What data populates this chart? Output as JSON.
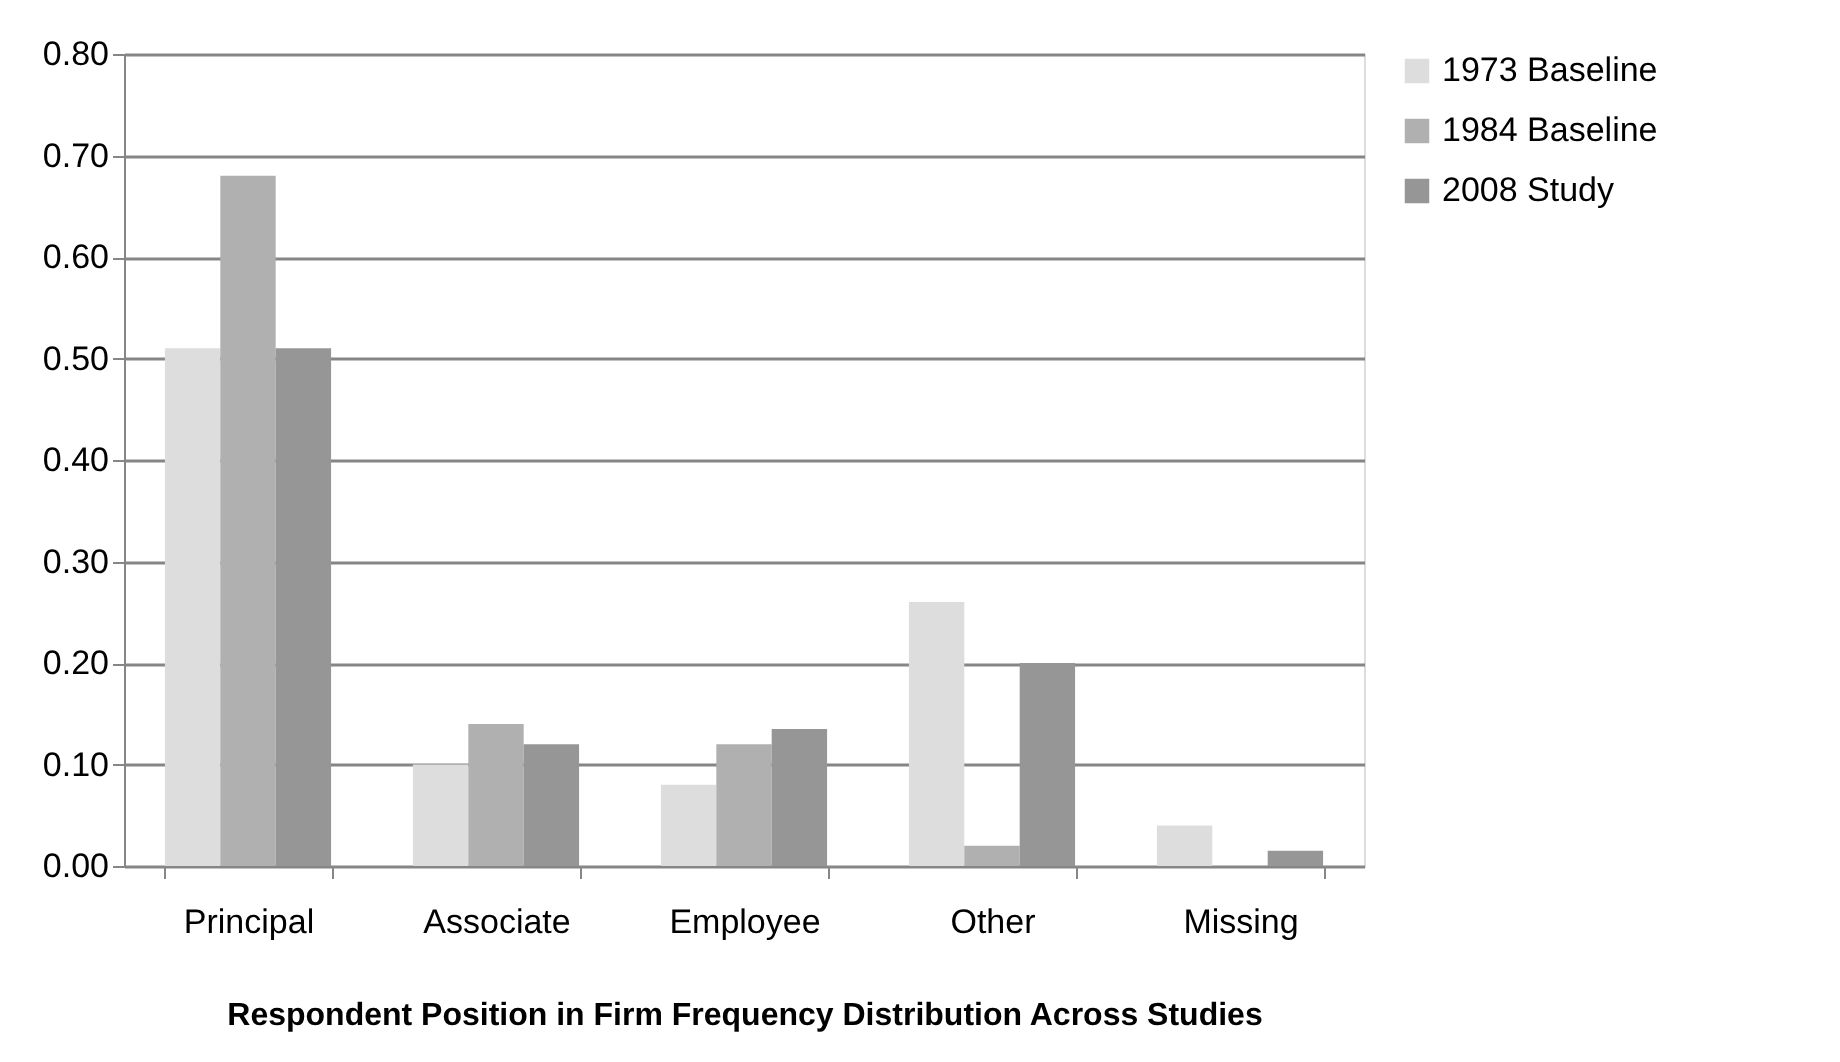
{
  "chart_data": {
    "type": "bar",
    "xlabel": "Respondent Position in Firm Frequency Distribution Across Studies",
    "categories": [
      "Principal",
      "Associate",
      "Employee",
      "Other",
      "Missing"
    ],
    "series": [
      {
        "name": "1973 Baseline",
        "color": "#dddddd",
        "values": [
          0.51,
          0.1,
          0.08,
          0.26,
          0.04
        ]
      },
      {
        "name": "1984 Baseline",
        "color": "#b0b0b0",
        "values": [
          0.68,
          0.14,
          0.12,
          0.02,
          0
        ]
      },
      {
        "name": "2008 Study",
        "color": "#969696",
        "values": [
          0.51,
          0.12,
          0.135,
          0.2,
          0.015
        ]
      }
    ],
    "ylim": [
      0,
      0.8
    ],
    "yticks": [
      {
        "value": 0,
        "label": "0.00"
      },
      {
        "value": 0.1,
        "label": "0.10"
      },
      {
        "value": 0.2,
        "label": "0.20"
      },
      {
        "value": 0.3,
        "label": "0.30"
      },
      {
        "value": 0.4,
        "label": "0.40"
      },
      {
        "value": 0.5,
        "label": "0.50"
      },
      {
        "value": 0.6,
        "label": "0.60"
      },
      {
        "value": 0.7,
        "label": "0.70"
      },
      {
        "value": 0.8,
        "label": "0.80"
      }
    ],
    "grid": "y",
    "legend": "right"
  }
}
